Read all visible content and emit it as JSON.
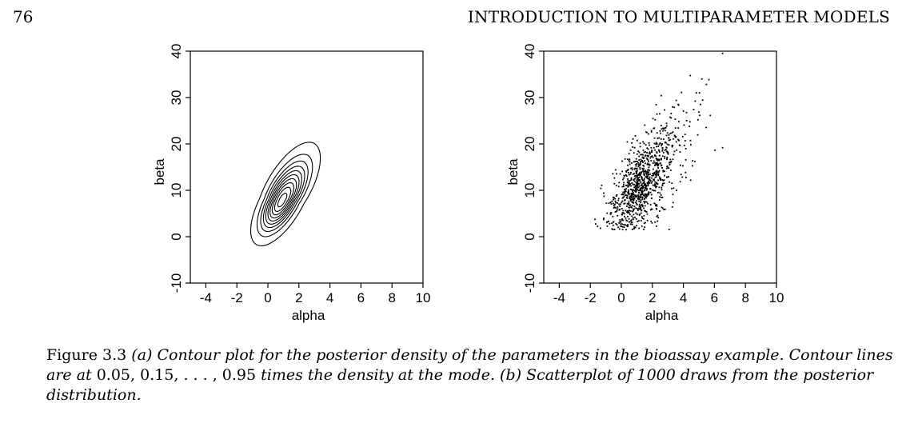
{
  "header": {
    "page_number": "76",
    "running_head": "INTRODUCTION TO MULTIPARAMETER MODELS"
  },
  "figure": {
    "caption": {
      "label": "Figure 3.3",
      "part1": " (a) Contour plot for the posterior density of the parameters in the bioassay example. Contour lines are at ",
      "math": "0.05, 0.15, . . . , 0.95",
      "part2": " times the density at the mode. (b) Scatterplot of 1000 draws from the posterior distribution."
    }
  },
  "chart_data": [
    {
      "type": "contour",
      "xlabel": "alpha",
      "ylabel": "beta",
      "xlim": [
        -5,
        10
      ],
      "ylim": [
        -10,
        40
      ],
      "xticks": [
        "-4",
        "-2",
        "0",
        "2",
        "4",
        "6",
        "8",
        "10"
      ],
      "yticks": [
        "-10",
        "0",
        "10",
        "20",
        "30",
        "40"
      ],
      "mode": {
        "alpha": 0.9,
        "beta": 7.7
      },
      "contour_levels": [
        0.05,
        0.15,
        0.25,
        0.35,
        0.45,
        0.55,
        0.65,
        0.75,
        0.85,
        0.95
      ],
      "contours": [
        {
          "level": 0.05,
          "alpha_min": -1.2,
          "alpha_max": 4.2,
          "beta_min": 1.8,
          "beta_max": 26.2
        },
        {
          "level": 0.15,
          "alpha_min": -0.8,
          "alpha_max": 3.6,
          "beta_min": 2.6,
          "beta_max": 22.5
        },
        {
          "level": 0.95,
          "alpha_min": 0.6,
          "alpha_max": 1.2,
          "beta_min": 6.6,
          "beta_max": 8.8
        }
      ],
      "grid": false
    },
    {
      "type": "scatter",
      "xlabel": "alpha",
      "ylabel": "beta",
      "xlim": [
        -5,
        10
      ],
      "ylim": [
        -10,
        40
      ],
      "xticks": [
        "-4",
        "-2",
        "0",
        "2",
        "4",
        "6",
        "8",
        "10"
      ],
      "yticks": [
        "-10",
        "0",
        "10",
        "20",
        "30",
        "40"
      ],
      "n_points": 1000,
      "distribution": {
        "alpha_mean": 1.3,
        "alpha_sd": 1.0,
        "beta_mean": 11.6,
        "beta_sd": 5.3,
        "correlation": 0.6
      },
      "grid": false
    }
  ]
}
